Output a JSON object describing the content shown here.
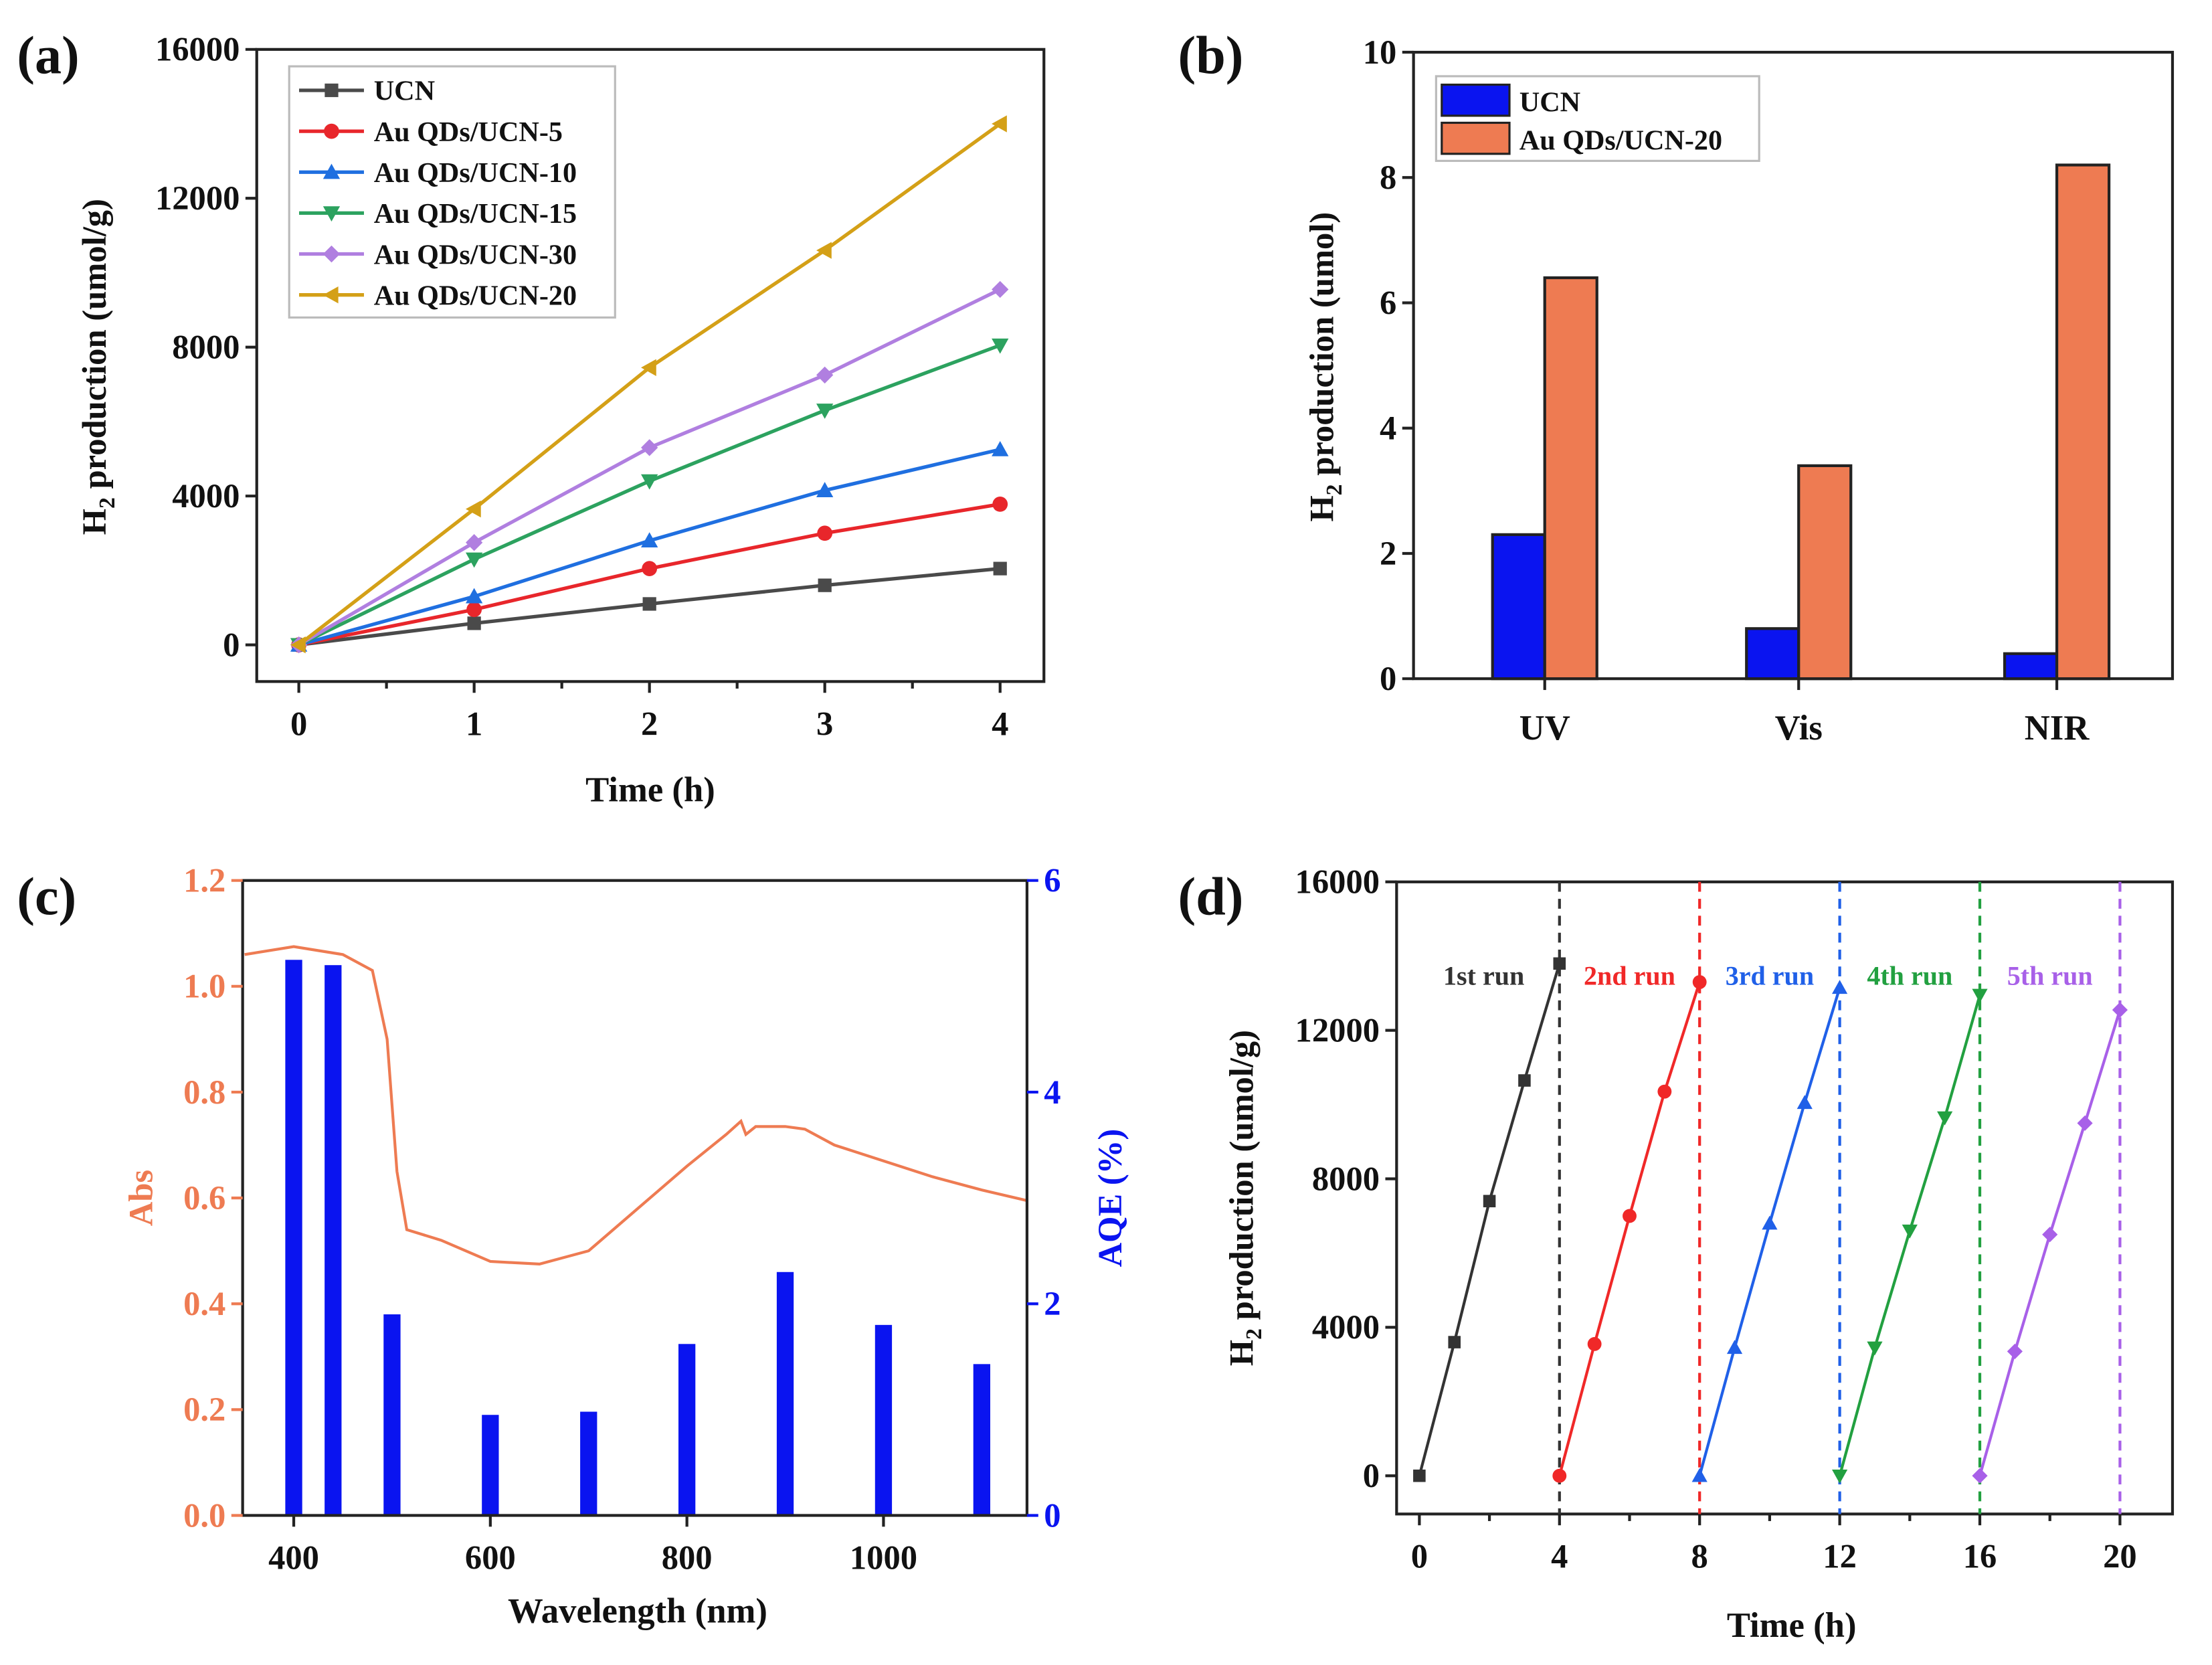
{
  "chart_data": [
    {
      "panel": "(a)",
      "type": "line",
      "xlabel": "Time (h)",
      "ylabel": "H2 production (umol/g)",
      "xlim": [
        -0.24,
        4.25
      ],
      "ylim": [
        -985,
        16000
      ],
      "xticks": [
        0,
        1,
        2,
        3,
        4
      ],
      "yticks": [
        0,
        4000,
        8000,
        12000,
        16000
      ],
      "legend": "top-left",
      "x": [
        0,
        1,
        2,
        3,
        4
      ],
      "series": [
        {
          "name": "UCN",
          "color": "#4a4a4a",
          "marker": "square",
          "values": [
            0,
            580,
            1100,
            1600,
            2050
          ]
        },
        {
          "name": "Au QDs/UCN-5",
          "color": "#e8262b",
          "marker": "circle",
          "values": [
            0,
            950,
            2050,
            3000,
            3780
          ]
        },
        {
          "name": "Au QDs/UCN-10",
          "color": "#1f6fe0",
          "marker": "triangle-up",
          "values": [
            0,
            1300,
            2800,
            4150,
            5250
          ]
        },
        {
          "name": "Au QDs/UCN-15",
          "color": "#2ca25f",
          "marker": "triangle-down",
          "values": [
            0,
            2300,
            4400,
            6300,
            8050
          ]
        },
        {
          "name": "Au QDs/UCN-30",
          "color": "#b07fe0",
          "marker": "diamond",
          "values": [
            0,
            2750,
            5300,
            7250,
            9550
          ]
        },
        {
          "name": "Au QDs/UCN-20",
          "color": "#d4a017",
          "marker": "triangle-left",
          "values": [
            0,
            3650,
            7450,
            10600,
            14000
          ]
        }
      ]
    },
    {
      "panel": "(b)",
      "type": "bar",
      "xlabel": "",
      "ylabel": "H2 production (umol)",
      "ylim": [
        0,
        10
      ],
      "yticks": [
        0,
        2,
        4,
        6,
        8,
        10
      ],
      "legend": "top-left",
      "categories": [
        "UV",
        "Vis",
        "NIR"
      ],
      "series": [
        {
          "name": "UCN",
          "color": "#0a14f0",
          "values": [
            2.3,
            0.8,
            0.4
          ]
        },
        {
          "name": "Au QDs/UCN-20",
          "color": "#ee7b52",
          "values": [
            6.4,
            3.4,
            8.2
          ]
        }
      ]
    },
    {
      "panel": "(c)",
      "type": "line+bar",
      "xlabel": "Wavelength (nm)",
      "ylabel": "Abs",
      "y2label": "AQE (%)",
      "xlim": [
        348,
        1146
      ],
      "ylim": [
        0,
        1.2
      ],
      "y2lim": [
        0,
        6
      ],
      "xticks": [
        400,
        600,
        800,
        1000
      ],
      "yticks": [
        0,
        0.2,
        0.4,
        0.6,
        0.8,
        1.0,
        1.2
      ],
      "y2ticks": [
        0,
        2,
        4,
        6
      ],
      "abs_color": "#ee7b52",
      "aqe_color": "#0a14f0",
      "abs": {
        "x": [
          350,
          400,
          450,
          480,
          495,
          505,
          515,
          550,
          600,
          650,
          700,
          750,
          800,
          840,
          855,
          860,
          870,
          900,
          920,
          950,
          1000,
          1050,
          1100,
          1146
        ],
        "y": [
          1.06,
          1.075,
          1.06,
          1.03,
          0.9,
          0.65,
          0.54,
          0.52,
          0.48,
          0.475,
          0.5,
          0.58,
          0.66,
          0.72,
          0.745,
          0.72,
          0.735,
          0.735,
          0.73,
          0.7,
          0.67,
          0.64,
          0.615,
          0.595
        ]
      },
      "aqe": {
        "x": [
          400,
          440,
          500,
          600,
          700,
          800,
          900,
          1000,
          1100
        ],
        "y": [
          5.25,
          5.2,
          1.9,
          0.95,
          0.98,
          1.62,
          2.3,
          1.8,
          1.43
        ]
      }
    },
    {
      "panel": "(d)",
      "type": "line",
      "xlabel": "Time (h)",
      "ylabel": "H2 production (umol/g)",
      "xlim": [
        -0.65,
        21.5
      ],
      "ylim": [
        -1030,
        16000
      ],
      "xticks": [
        0,
        4,
        8,
        12,
        16,
        20
      ],
      "yticks": [
        0,
        4000,
        8000,
        12000,
        16000
      ],
      "series": [
        {
          "name": "1st run",
          "color": "#333333",
          "marker": "square",
          "x0": 0,
          "values": [
            0,
            3600,
            7400,
            10650,
            13800
          ]
        },
        {
          "name": "2nd run",
          "color": "#f02828",
          "marker": "circle",
          "x0": 4,
          "values": [
            0,
            3550,
            7000,
            10350,
            13300
          ]
        },
        {
          "name": "3rd run",
          "color": "#2060e8",
          "marker": "triangle-up",
          "x0": 8,
          "values": [
            0,
            3450,
            6800,
            10050,
            13150
          ]
        },
        {
          "name": "4th run",
          "color": "#22a040",
          "marker": "triangle-down",
          "x0": 12,
          "values": [
            0,
            3450,
            6600,
            9650,
            12950
          ]
        },
        {
          "name": "5th run",
          "color": "#a860e8",
          "marker": "diamond",
          "x0": 16,
          "values": [
            0,
            3350,
            6500,
            9500,
            12550
          ]
        }
      ]
    }
  ]
}
